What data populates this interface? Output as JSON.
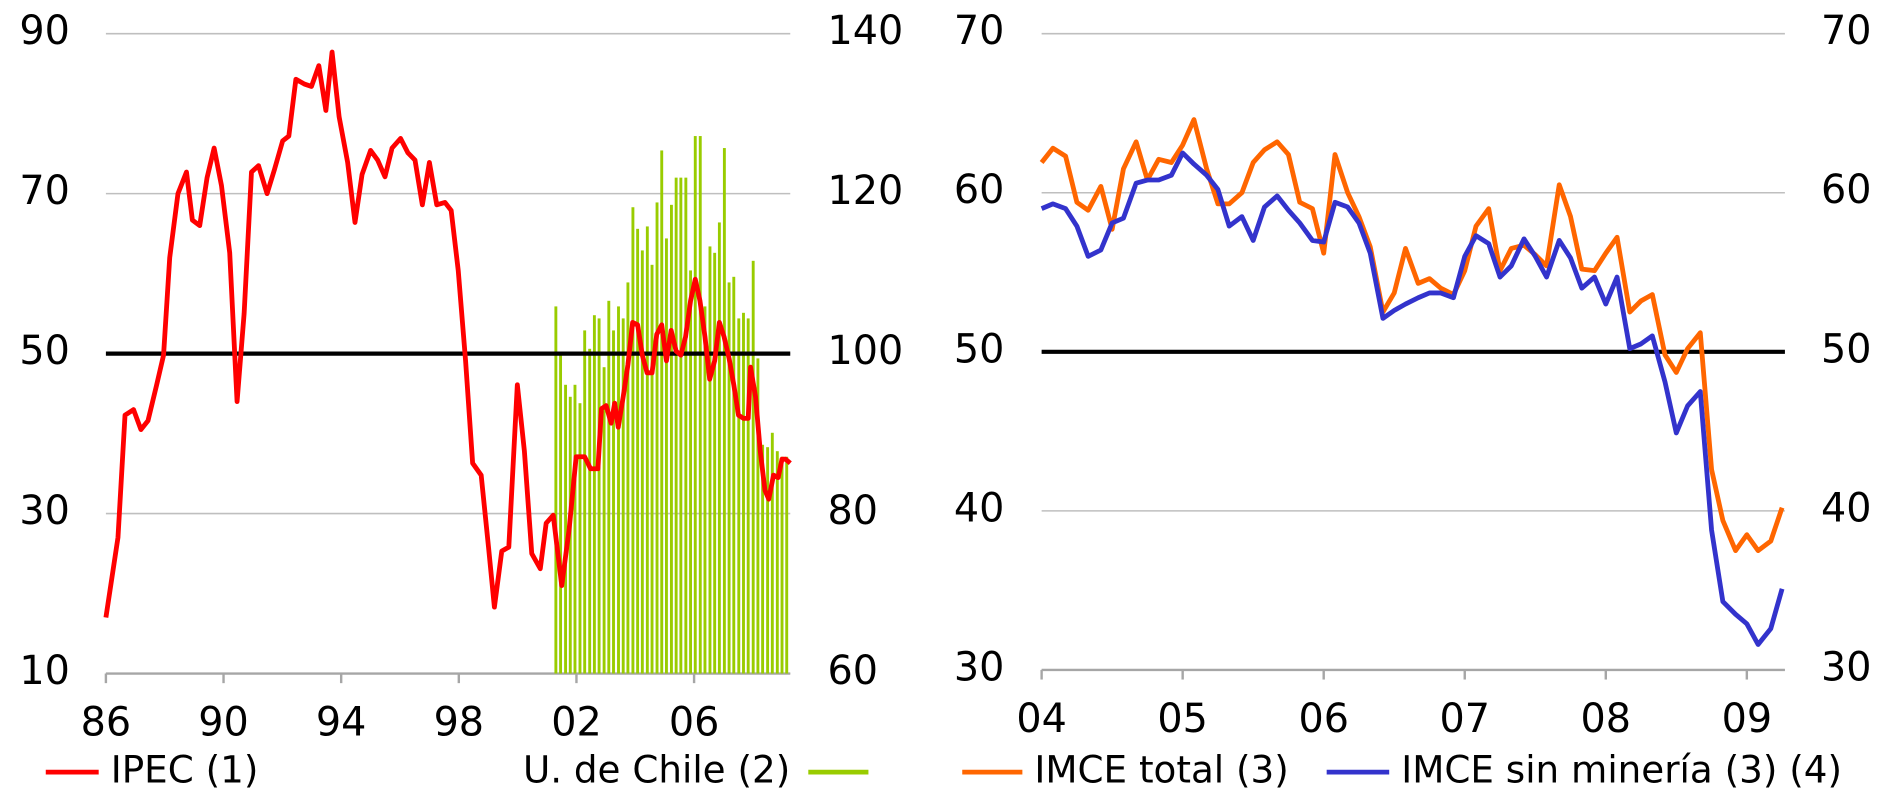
{
  "chart_data": [
    {
      "type": "line",
      "xlim": [
        1986,
        2009.27
      ],
      "xticks": [
        {
          "value": 1986,
          "label": "86"
        },
        {
          "value": 1990,
          "label": "90"
        },
        {
          "value": 1994,
          "label": "94"
        },
        {
          "value": 1998,
          "label": "98"
        },
        {
          "value": 2002,
          "label": "02"
        },
        {
          "value": 2006,
          "label": "06"
        }
      ],
      "ylim": [
        10,
        90
      ],
      "yticks": [
        10,
        30,
        50,
        70,
        90
      ],
      "y2lim": [
        60,
        140
      ],
      "y2ticks": [
        60,
        80,
        100,
        120,
        140
      ],
      "grid": true,
      "reference_line": 50,
      "series": [
        {
          "name": "IPEC (1)",
          "color": "#ff0000",
          "x": [
            1986.0,
            1986.41,
            1986.65,
            1986.94,
            1987.19,
            1987.43,
            1987.72,
            1987.96,
            1988.17,
            1988.45,
            1988.74,
            1988.94,
            1989.19,
            1989.44,
            1989.68,
            1989.93,
            1990.21,
            1990.46,
            1990.7,
            1990.95,
            1991.19,
            1991.48,
            1991.73,
            1992.01,
            1992.22,
            1992.46,
            1992.75,
            1992.99,
            1993.24,
            1993.48,
            1993.69,
            1993.93,
            1994.22,
            1994.47,
            1994.71,
            1995.0,
            1995.24,
            1995.49,
            1995.73,
            1996.02,
            1996.27,
            1996.51,
            1996.76,
            1997.0,
            1997.25,
            1997.53,
            1997.74,
            1997.98,
            1998.23,
            1998.47,
            1998.76,
            1999.01,
            1999.21,
            1999.46,
            1999.7,
            1999.99,
            2000.23,
            2000.48,
            2000.77,
            2000.97,
            2001.21,
            2001.5,
            2001.75,
            2001.99,
            2002.28,
            2002.48,
            2002.73,
            2002.85,
            2003.01,
            2003.18,
            2003.3,
            2003.42,
            2003.59,
            2003.75,
            2003.91,
            2004.08,
            2004.24,
            2004.4,
            2004.57,
            2004.73,
            2004.9,
            2005.06,
            2005.22,
            2005.39,
            2005.55,
            2005.71,
            2005.88,
            2006.04,
            2006.2,
            2006.37,
            2006.53,
            2006.7,
            2006.86,
            2007.02,
            2007.19,
            2007.35,
            2007.51,
            2007.68,
            2007.84,
            2007.92,
            2008.09,
            2008.25,
            2008.41,
            2008.54,
            2008.7,
            2008.86,
            2008.99,
            2009.11,
            2009.27
          ],
          "values": [
            17,
            27,
            42.3,
            43,
            40.5,
            41.6,
            46,
            49.8,
            62,
            70,
            72.7,
            66.7,
            66,
            72,
            75.7,
            71,
            62.6,
            44,
            55,
            72.7,
            73.5,
            70,
            73,
            76.6,
            77.2,
            84.3,
            83.7,
            83.4,
            86,
            80.4,
            87.7,
            79.6,
            73.9,
            66.4,
            72.4,
            75.4,
            74.2,
            72.1,
            75.7,
            76.9,
            75.1,
            74.2,
            68.6,
            73.9,
            68.6,
            68.9,
            67.9,
            60.4,
            49.1,
            36.3,
            34.8,
            25.8,
            18.3,
            25.3,
            25.8,
            46.1,
            37.8,
            25,
            23.1,
            28.8,
            29.8,
            21,
            28,
            37.1,
            37.1,
            35.6,
            35.6,
            43.1,
            43.5,
            41.3,
            43.8,
            40.8,
            44.6,
            48.6,
            53.9,
            53.6,
            49.8,
            47.6,
            47.6,
            52.4,
            53.6,
            49.1,
            52.9,
            50.3,
            49.8,
            52.1,
            56.6,
            59.3,
            56.6,
            52.1,
            46.8,
            49.1,
            53.9,
            52.1,
            49.4,
            46.1,
            42.3,
            41.9,
            41.9,
            48.3,
            44.6,
            37.8,
            32.9,
            31.8,
            34.8,
            34.5,
            36.8,
            36.8,
            36.3
          ]
        },
        {
          "name": "U. de Chile (2)",
          "color": "#99cc00",
          "type": "bar",
          "axis": "y2",
          "x": [
            2001.3,
            2001.46,
            2001.63,
            2001.79,
            2001.95,
            2002.12,
            2002.28,
            2002.45,
            2002.61,
            2002.77,
            2002.94,
            2003.1,
            2003.26,
            2003.43,
            2003.59,
            2003.75,
            2003.92,
            2004.08,
            2004.24,
            2004.41,
            2004.57,
            2004.74,
            2004.9,
            2005.06,
            2005.23,
            2005.39,
            2005.55,
            2005.72,
            2005.88,
            2006.04,
            2006.21,
            2006.37,
            2006.54,
            2006.7,
            2006.86,
            2007.03,
            2007.19,
            2007.35,
            2007.52,
            2007.68,
            2007.84,
            2008.01,
            2008.17,
            2008.33,
            2008.5,
            2008.66,
            2008.83,
            2008.99,
            2009.15
          ],
          "values": [
            105.9,
            99.8,
            96.1,
            94.6,
            96.1,
            93.8,
            102.9,
            100.6,
            104.8,
            104.4,
            98.3,
            106.6,
            102.9,
            105.9,
            104.4,
            108.9,
            118.3,
            115.6,
            112.9,
            115.9,
            111.1,
            118.9,
            125.4,
            114.4,
            118.6,
            122,
            122,
            122,
            110.4,
            127.2,
            127.2,
            105.9,
            113.4,
            112.6,
            116.4,
            125.7,
            108.9,
            109.6,
            104.4,
            105.1,
            104.4,
            111.6,
            99.4,
            88.6,
            88.3,
            90.1,
            87.8,
            87.1,
            87.1
          ]
        }
      ]
    },
    {
      "type": "line",
      "x": [
        2004,
        2004.08,
        2004.17,
        2004.25,
        2004.33,
        2004.42,
        2004.5,
        2004.58,
        2004.67,
        2004.75,
        2004.83,
        2004.92,
        2005,
        2005.08,
        2005.17,
        2005.25,
        2005.33,
        2005.42,
        2005.5,
        2005.58,
        2005.67,
        2005.75,
        2005.83,
        2005.92,
        2006,
        2006.08,
        2006.17,
        2006.25,
        2006.33,
        2006.42,
        2006.5,
        2006.58,
        2006.67,
        2006.75,
        2006.83,
        2006.92,
        2007,
        2007.08,
        2007.17,
        2007.25,
        2007.33,
        2007.42,
        2007.5,
        2007.58,
        2007.67,
        2007.75,
        2007.83,
        2007.92,
        2008,
        2008.08,
        2008.17,
        2008.25,
        2008.33,
        2008.42,
        2008.5,
        2008.58,
        2008.67,
        2008.75,
        2008.83,
        2008.92,
        2009,
        2009.08,
        2009.17,
        2009.25
      ],
      "xlim": [
        2004,
        2009.27
      ],
      "xticks": [
        {
          "value": 2004,
          "label": "04"
        },
        {
          "value": 2005,
          "label": "05"
        },
        {
          "value": 2006,
          "label": "06"
        },
        {
          "value": 2007,
          "label": "07"
        },
        {
          "value": 2008,
          "label": "08"
        },
        {
          "value": 2009,
          "label": "09"
        }
      ],
      "ylim": [
        30,
        70
      ],
      "yticks": [
        30,
        40,
        50,
        60,
        70
      ],
      "y2lim": [
        30,
        70
      ],
      "y2ticks": [
        30,
        40,
        50,
        60,
        70
      ],
      "grid": true,
      "reference_line": 50,
      "series": [
        {
          "name": "IMCE total (3)",
          "color": "#ff6600",
          "values": [
            61.9,
            62.8,
            62.3,
            59.4,
            58.9,
            60.4,
            57.7,
            61.5,
            63.2,
            60.8,
            62.1,
            61.9,
            63,
            64.6,
            61.5,
            59.3,
            59.3,
            60,
            61.9,
            62.7,
            63.2,
            62.4,
            59.4,
            59,
            56.2,
            62.4,
            60,
            58.5,
            56.6,
            52.5,
            53.7,
            56.5,
            54.3,
            54.6,
            54,
            53.6,
            55.1,
            57.9,
            59,
            55.1,
            56.5,
            56.7,
            56.1,
            55.4,
            60.5,
            58.5,
            55.2,
            55.1,
            56.2,
            57.2,
            52.5,
            53.2,
            53.6,
            49.8,
            48.7,
            50.2,
            51.2,
            42.6,
            39.4,
            37.5,
            38.5,
            37.5,
            38.1,
            40.2
          ]
        },
        {
          "name": "IMCE sin minería (3) (4)",
          "color": "#3333cc",
          "values": [
            59,
            59.3,
            59,
            57.9,
            56,
            56.4,
            58.1,
            58.4,
            60.6,
            60.8,
            60.8,
            61.1,
            62.5,
            61.8,
            61.1,
            60.2,
            57.9,
            58.5,
            57,
            59.1,
            59.8,
            58.9,
            58.1,
            57,
            56.9,
            59.4,
            59.1,
            58.1,
            56.2,
            52.1,
            52.6,
            53,
            53.4,
            53.7,
            53.7,
            53.4,
            56,
            57.3,
            56.8,
            54.7,
            55.4,
            57.1,
            56,
            54.7,
            57,
            55.9,
            54,
            54.7,
            53,
            54.7,
            50.2,
            50.5,
            51,
            48.1,
            44.9,
            46.6,
            47.5,
            38.8,
            34.3,
            33.5,
            32.9,
            31.6,
            32.6,
            35.1
          ]
        }
      ]
    }
  ]
}
